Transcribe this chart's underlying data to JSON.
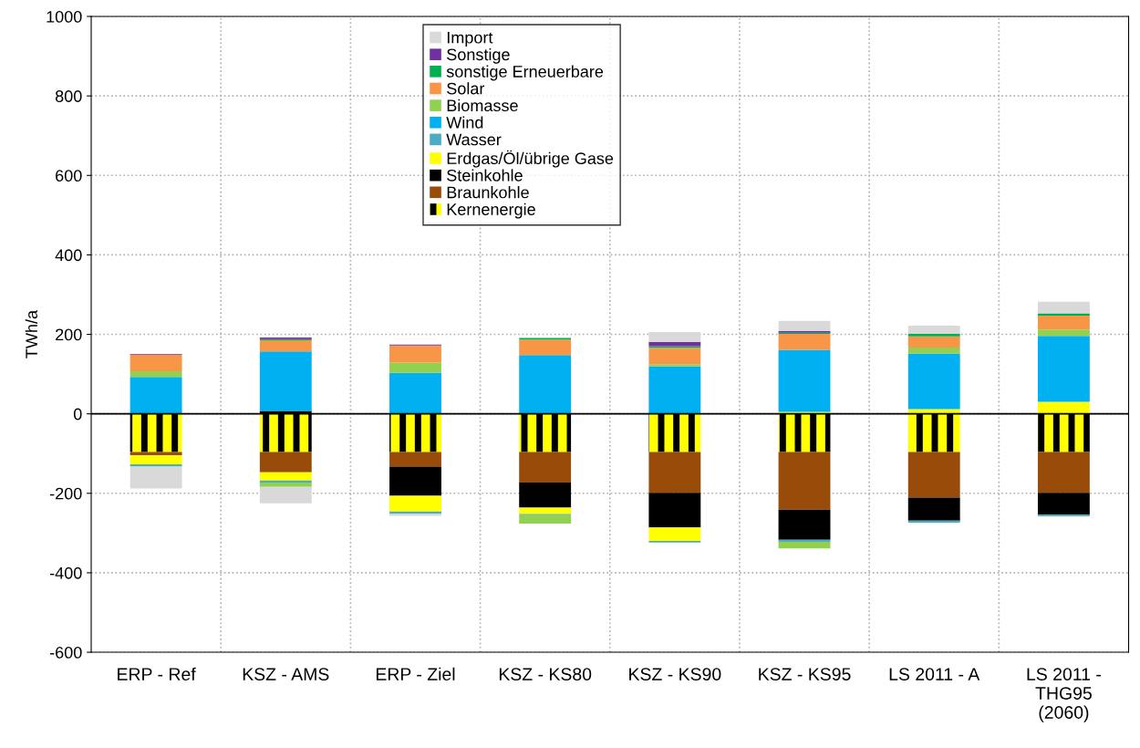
{
  "chart_data": {
    "type": "bar",
    "stacked": true,
    "ylabel": "TWh/a",
    "categories": [
      "ERP - Ref",
      "KSZ - AMS",
      "ERP - Ziel",
      "KSZ - KS80",
      "KSZ - KS90",
      "KSZ - KS95",
      "LS 2011 - A",
      "LS 2011 -\nTHG95\n(2060)"
    ],
    "series": [
      {
        "name": "Kernenergie",
        "color": "#ffff00",
        "values": [
          -96,
          -96,
          -96,
          -96,
          -96,
          -96,
          -96,
          -96
        ]
      },
      {
        "name": "Braunkohle",
        "color": "#994c0a",
        "values": [
          -8,
          -51,
          -37,
          -77,
          -103,
          -145,
          -115,
          -103
        ]
      },
      {
        "name": "Steinkohle",
        "color": "#000000",
        "values": [
          0,
          7,
          -73,
          -63,
          -87,
          -76,
          -58,
          -55
        ]
      },
      {
        "name": "Erdgas/Öl/übrige Gase",
        "color": "#ffff00",
        "values": [
          -23,
          -21,
          -40,
          -16,
          -34,
          5,
          12,
          30
        ]
      },
      {
        "name": "Wasser",
        "color": "#4bacc6",
        "values": [
          -6,
          -5,
          -5,
          -3,
          -4,
          -5,
          -5,
          -4
        ]
      },
      {
        "name": "Wind",
        "color": "#00b0f0",
        "values": [
          93,
          150,
          103,
          148,
          120,
          156,
          140,
          166
        ]
      },
      {
        "name": "Biomasse",
        "color": "#92d050",
        "values": [
          14,
          -11,
          26,
          -21,
          5,
          -17,
          15,
          16
        ]
      },
      {
        "name": "Solar",
        "color": "#f79646",
        "values": [
          42,
          28,
          43,
          39,
          41,
          40,
          28,
          35
        ]
      },
      {
        "name": "sonstige Erneuerbare",
        "color": "#00b050",
        "values": [
          0,
          3,
          0,
          4,
          4,
          3,
          7,
          6
        ]
      },
      {
        "name": "Sonstige",
        "color": "#7030a0",
        "values": [
          2,
          4,
          2,
          0,
          11,
          4,
          0,
          0
        ]
      },
      {
        "name": "Import",
        "color": "#d9d9d9",
        "values": [
          -55,
          -41,
          -6,
          0,
          25,
          26,
          20,
          29
        ]
      }
    ],
    "ylim": [
      -600,
      1000
    ],
    "yticks": [
      -600,
      -400,
      -200,
      0,
      200,
      400,
      600,
      800,
      1000
    ],
    "ref_lines": [
      {
        "axis": "y",
        "value": 0,
        "color": "#000000"
      }
    ],
    "grid": true,
    "legend": "top"
  }
}
